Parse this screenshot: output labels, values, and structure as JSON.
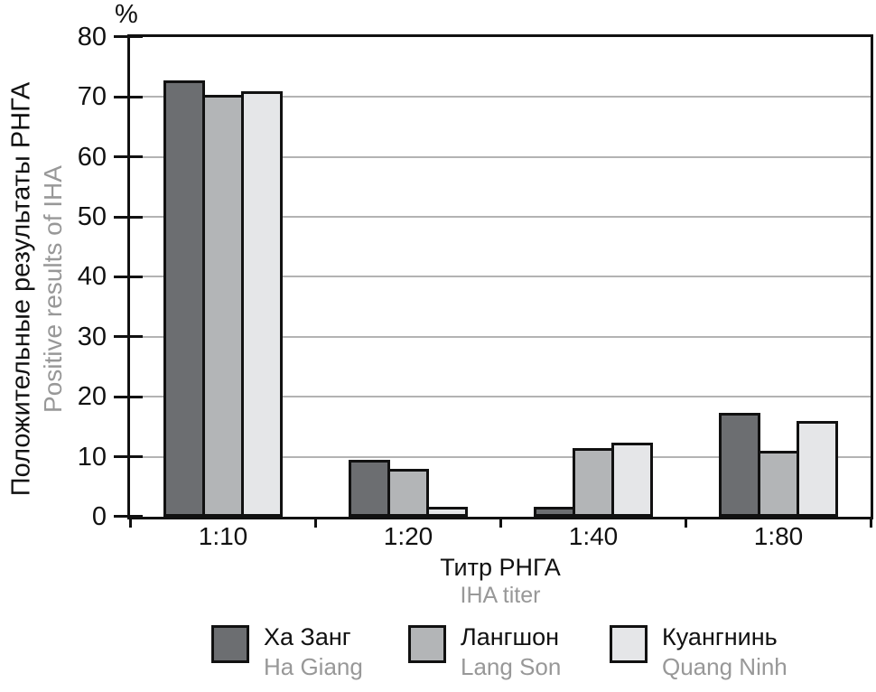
{
  "chart_data": {
    "type": "bar",
    "unit": "%",
    "categories": [
      "1:10",
      "1:20",
      "1:40",
      "1:80"
    ],
    "series": [
      {
        "name_ru": "Ха Занг",
        "name_en": "Ha Giang",
        "color": "#6c6e71",
        "values": [
          72.7,
          9.5,
          1.6,
          17.3
        ]
      },
      {
        "name_ru": "Лангшон",
        "name_en": "Lang Son",
        "color": "#b3b5b7",
        "values": [
          70.3,
          8.0,
          11.5,
          11.0
        ]
      },
      {
        "name_ru": "Куангнинь",
        "name_en": "Quang Ninh",
        "color": "#e5e6e8",
        "values": [
          70.9,
          1.6,
          12.4,
          15.9
        ]
      }
    ],
    "ylabel_ru": "Положительные результаты РНГА",
    "ylabel_en": "Positive results of IHA",
    "xlabel_ru": "Титр РНГА",
    "xlabel_en": "IHA titer",
    "ylim": [
      0,
      80
    ],
    "yticks": [
      0,
      10,
      20,
      30,
      40,
      50,
      60,
      70,
      80
    ],
    "grid": true,
    "legend_position": "bottom"
  },
  "colors": {
    "grid": "#b3b3b3",
    "axis": "#111111",
    "text": "#111111",
    "muted_text": "#989898"
  }
}
